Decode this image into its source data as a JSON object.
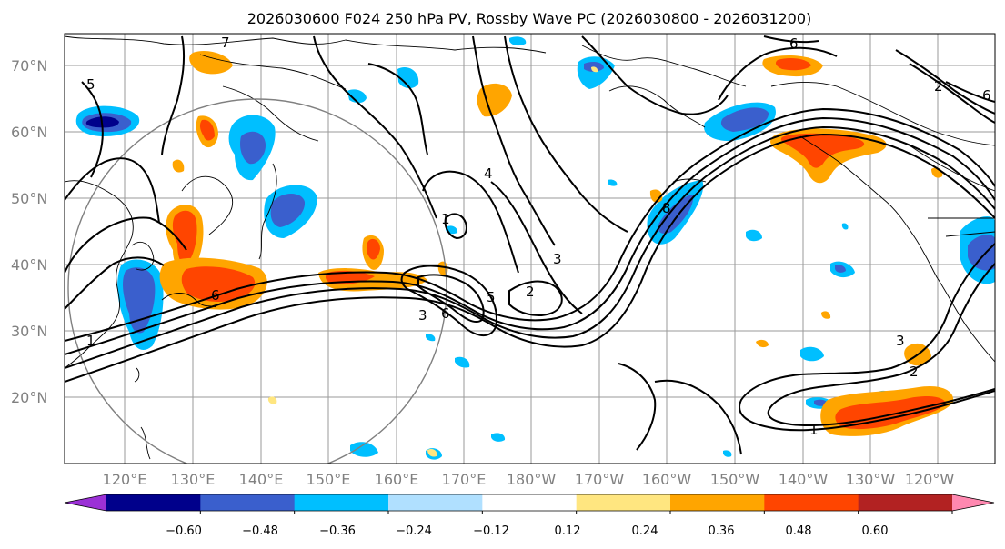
{
  "title": "2026030600 F024 250 hPa PV, Rossby Wave PC (2026030800 - 2026031200)",
  "lat_labels": [
    "70°N",
    "60°N",
    "50°N",
    "40°N",
    "30°N",
    "20°N"
  ],
  "lon_labels": [
    "120°E",
    "130°E",
    "140°E",
    "150°E",
    "160°E",
    "170°E",
    "180°W",
    "170°W",
    "160°W",
    "150°W",
    "140°W",
    "130°W",
    "120°W"
  ],
  "contour_labels": [
    "7",
    "6",
    "5",
    "4",
    "1",
    "2",
    "3",
    "6",
    "2",
    "3",
    "8",
    "5",
    "6",
    "1",
    "6",
    "2",
    "3",
    "1"
  ],
  "colorbar": {
    "tick_labels": [
      "−0.60",
      "−0.48",
      "−0.36",
      "−0.24",
      "−0.12",
      "0.12",
      "0.24",
      "0.36",
      "0.48",
      "0.60"
    ],
    "colors": [
      "#9b30d6",
      "#00008b",
      "#3a5fcd",
      "#00bfff",
      "#b0e0ff",
      "#ffffff",
      "#ffe680",
      "#ffa500",
      "#ff4500",
      "#b22222",
      "#ff88b0"
    ]
  },
  "anomaly_colors": {
    "neg_strong": "#00008b",
    "neg_mid": "#3a5fcd",
    "neg_weak": "#00bfff",
    "neg_light": "#b0e0ff",
    "pos_light": "#ffe680",
    "pos_weak": "#ffa500",
    "pos_mid": "#ff4500",
    "pos_strong": "#b22222"
  }
}
